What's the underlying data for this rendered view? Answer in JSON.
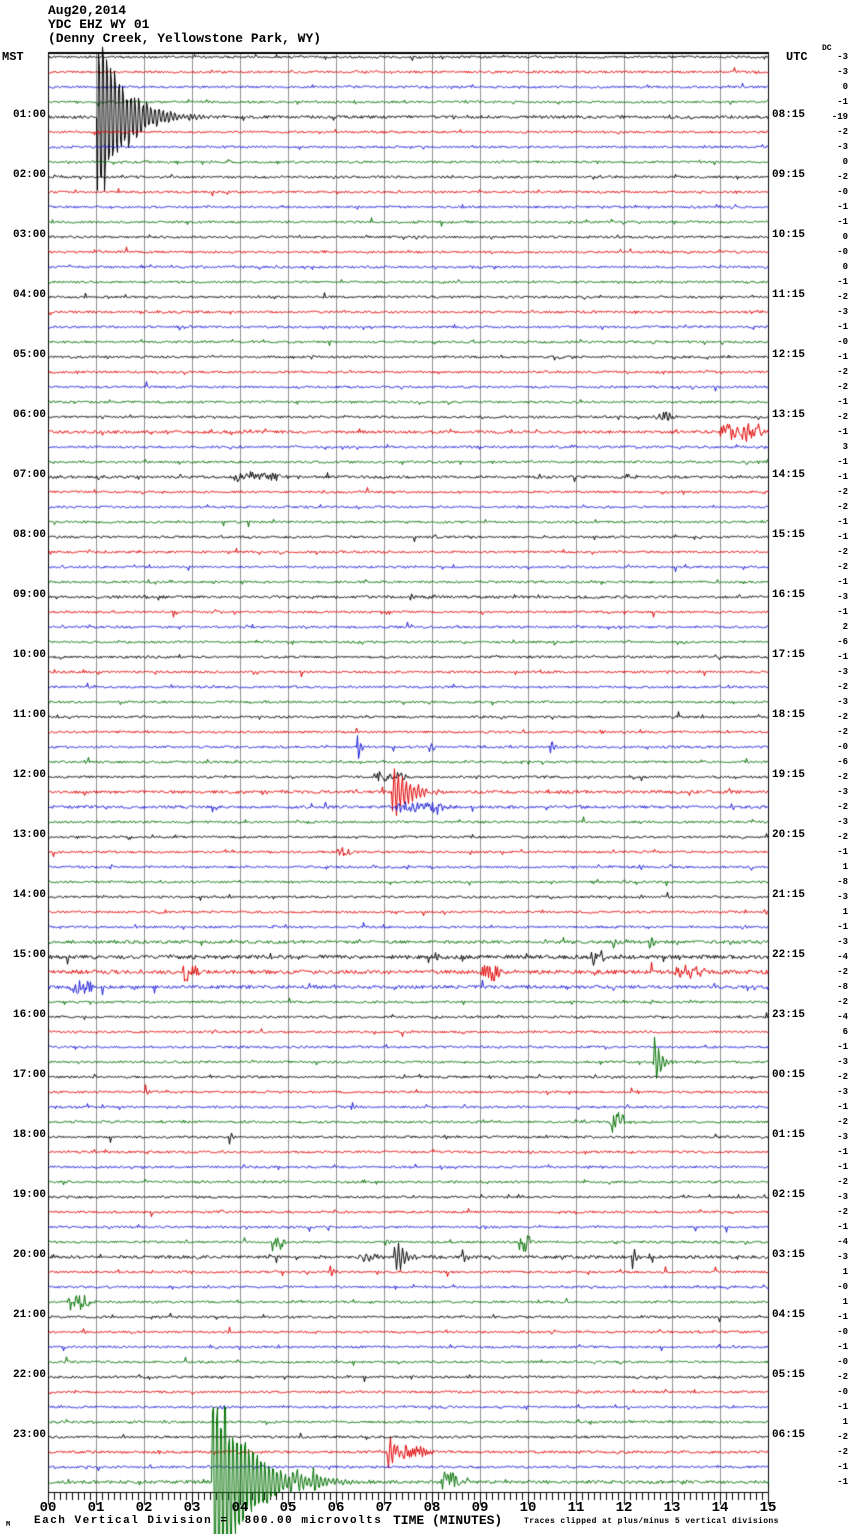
{
  "header": {
    "date": "Aug20,2014",
    "station": "YDC EHZ WY 01",
    "location": "(Denny Creek, Yellowstone Park, WY)",
    "left_tz": "MST",
    "right_tz": "UTC",
    "dc_label": "DC"
  },
  "footer": {
    "watermark": "M",
    "scale_note": "Each Vertical Division =  800.00 microvolts",
    "clip_note": "Traces clipped at plus/minus 5 vertical divisions"
  },
  "chart_data": {
    "type": "line",
    "kind": "helicorder-seismogram",
    "title": "YDC EHZ WY 01 (Denny Creek, Yellowstone Park, WY) Aug20,2014",
    "xlabel": "TIME (MINUTES)",
    "x_range": [
      0,
      15
    ],
    "x_ticks": [
      "00",
      "01",
      "02",
      "03",
      "04",
      "05",
      "06",
      "07",
      "08",
      "09",
      "10",
      "11",
      "12",
      "13",
      "14",
      "15"
    ],
    "minutes_per_line": 15,
    "rows_total": 96,
    "row_spacing_px": 15,
    "clip_divisions": 5,
    "microvolts_per_division": "800.00",
    "color_cycle": [
      "#000000",
      "#e00000",
      "#1c1cd8",
      "#007000"
    ],
    "grid_color": "#909090",
    "mst_labels": [
      "01:00",
      "02:00",
      "03:00",
      "04:00",
      "05:00",
      "06:00",
      "07:00",
      "08:00",
      "09:00",
      "10:00",
      "11:00",
      "12:00",
      "13:00",
      "14:00",
      "15:00",
      "16:00",
      "17:00",
      "18:00",
      "19:00",
      "20:00",
      "21:00",
      "22:00",
      "23:00"
    ],
    "utc_labels": [
      "08:15",
      "09:15",
      "10:15",
      "11:15",
      "12:15",
      "13:15",
      "14:15",
      "15:15",
      "16:15",
      "17:15",
      "18:15",
      "19:15",
      "20:15",
      "21:15",
      "22:15",
      "23:15",
      "00:15",
      "01:15",
      "02:15",
      "03:15",
      "04:15",
      "05:15",
      "06:15"
    ],
    "dc_values": [
      "-3",
      "-3",
      "0",
      "-1",
      "-19",
      "-2",
      "-3",
      "0",
      "-2",
      "-0",
      "-1",
      "-1",
      "0",
      "-0",
      "0",
      "-1",
      "-2",
      "-3",
      "-1",
      "-0",
      "-1",
      "-2",
      "-2",
      "-1",
      "-2",
      "-1",
      "3",
      "-1",
      "-1",
      "-2",
      "-2",
      "-1",
      "-1",
      "-2",
      "-2",
      "-1",
      "-3",
      "-1",
      "2",
      "-6",
      "-1",
      "-3",
      "-2",
      "-3",
      "-2",
      "-2",
      "-0",
      "-6",
      "-2",
      "-3",
      "-2",
      "-3",
      "-2",
      "-1",
      "1",
      "-8",
      "-3",
      "1",
      "-1",
      "-3",
      "-4",
      "-2",
      "-8",
      "-2",
      "-4",
      "6",
      "-1",
      "-3",
      "-2",
      "-3",
      "-1",
      "-2",
      "-3",
      "-1",
      "-1",
      "-2",
      "-3",
      "-2",
      "-1",
      "-4",
      "-3",
      "1",
      "-0",
      "1",
      "-1",
      "-0",
      "-1",
      "-0",
      "-2",
      "-0",
      "-1",
      "1",
      "-2",
      "-2",
      "-1",
      "-1"
    ],
    "noise_overrides": {
      "4": 1.5,
      "25": 1.4,
      "28": 1.3,
      "36": 1.3,
      "49": 1.5,
      "50": 1.4,
      "59": 1.5,
      "60": 2.0,
      "61": 2.0,
      "62": 1.6,
      "80": 1.5,
      "93": 1.3,
      "95": 1.6
    },
    "events": [
      {
        "r": 3,
        "m": 1.02,
        "a": 9,
        "d": 0.12,
        "k": "s"
      },
      {
        "r": 4,
        "m": 1.0,
        "a": 150,
        "d": 1.3,
        "k": "q"
      },
      {
        "r": 24,
        "m": 12.65,
        "a": 7,
        "d": 0.3,
        "k": "b"
      },
      {
        "r": 25,
        "m": 14.0,
        "a": 11,
        "d": 0.55,
        "k": "b"
      },
      {
        "r": 25,
        "m": 14.5,
        "a": 9,
        "d": 0.3,
        "k": "b"
      },
      {
        "r": 28,
        "m": 3.85,
        "a": 6,
        "d": 0.8,
        "k": "b"
      },
      {
        "r": 45,
        "m": 6.4,
        "a": 9,
        "d": 0.12,
        "k": "s"
      },
      {
        "r": 46,
        "m": 6.42,
        "a": 26,
        "d": 0.18,
        "k": "s"
      },
      {
        "r": 46,
        "m": 8.0,
        "a": 6,
        "d": 0.12,
        "k": "s"
      },
      {
        "r": 46,
        "m": 10.45,
        "a": 23,
        "d": 0.15,
        "k": "s"
      },
      {
        "r": 48,
        "m": 6.85,
        "a": 6,
        "d": 0.5,
        "k": "b"
      },
      {
        "r": 49,
        "m": 7.15,
        "a": 40,
        "d": 0.85,
        "k": "q"
      },
      {
        "r": 50,
        "m": 7.2,
        "a": 7,
        "d": 0.9,
        "k": "b"
      },
      {
        "r": 53,
        "m": 6.0,
        "a": 7,
        "d": 0.3,
        "k": "b"
      },
      {
        "r": 54,
        "m": 12.3,
        "a": 8,
        "d": 0.15,
        "k": "s"
      },
      {
        "r": 59,
        "m": 11.75,
        "a": 11,
        "d": 0.2,
        "k": "s"
      },
      {
        "r": 59,
        "m": 12.5,
        "a": 13,
        "d": 0.25,
        "k": "s"
      },
      {
        "r": 60,
        "m": 8.05,
        "a": 8,
        "d": 0.2,
        "k": "s"
      },
      {
        "r": 60,
        "m": 11.3,
        "a": 9,
        "d": 0.3,
        "k": "b"
      },
      {
        "r": 61,
        "m": 2.8,
        "a": 10,
        "d": 0.3,
        "k": "b"
      },
      {
        "r": 61,
        "m": 9.0,
        "a": 10,
        "d": 0.35,
        "k": "b"
      },
      {
        "r": 61,
        "m": 13.05,
        "a": 9,
        "d": 0.4,
        "k": "b"
      },
      {
        "r": 62,
        "m": 0.45,
        "a": 9,
        "d": 0.4,
        "k": "b"
      },
      {
        "r": 67,
        "m": 12.6,
        "a": 46,
        "d": 0.3,
        "k": "s"
      },
      {
        "r": 69,
        "m": 2.0,
        "a": 13,
        "d": 0.18,
        "k": "s"
      },
      {
        "r": 70,
        "m": 6.3,
        "a": 11,
        "d": 0.15,
        "k": "s"
      },
      {
        "r": 70,
        "m": 8.65,
        "a": 7,
        "d": 0.15,
        "k": "s"
      },
      {
        "r": 71,
        "m": 11.15,
        "a": 5,
        "d": 0.1,
        "k": "s"
      },
      {
        "r": 71,
        "m": 11.7,
        "a": 15,
        "d": 0.3,
        "k": "b"
      },
      {
        "r": 72,
        "m": 3.75,
        "a": 13,
        "d": 0.15,
        "k": "s"
      },
      {
        "r": 79,
        "m": 4.65,
        "a": 12,
        "d": 0.2,
        "k": "b"
      },
      {
        "r": 79,
        "m": 7.0,
        "a": 5,
        "d": 0.15,
        "k": "s"
      },
      {
        "r": 79,
        "m": 9.8,
        "a": 12,
        "d": 0.2,
        "k": "b"
      },
      {
        "r": 80,
        "m": 6.45,
        "a": 5,
        "d": 0.4,
        "k": "b"
      },
      {
        "r": 80,
        "m": 7.2,
        "a": 26,
        "d": 0.5,
        "k": "q"
      },
      {
        "r": 80,
        "m": 8.6,
        "a": 15,
        "d": 0.2,
        "k": "s"
      },
      {
        "r": 80,
        "m": 12.15,
        "a": 17,
        "d": 0.2,
        "k": "s"
      },
      {
        "r": 81,
        "m": 5.85,
        "a": 19,
        "d": 0.15,
        "k": "s"
      },
      {
        "r": 83,
        "m": 0.4,
        "a": 11,
        "d": 0.35,
        "k": "b"
      },
      {
        "r": 85,
        "m": 0.7,
        "a": 9,
        "d": 0.15,
        "k": "s"
      },
      {
        "r": 90,
        "m": 3.55,
        "a": 5,
        "d": 0.15,
        "k": "s"
      },
      {
        "r": 93,
        "m": 7.05,
        "a": 42,
        "d": 0.25,
        "k": "s"
      },
      {
        "r": 93,
        "m": 7.25,
        "a": 8,
        "d": 0.5,
        "k": "b"
      },
      {
        "r": 95,
        "m": 3.4,
        "a": 170,
        "d": 1.7,
        "k": "q"
      },
      {
        "r": 95,
        "m": 4.9,
        "a": 7,
        "d": 0.3,
        "k": "b"
      },
      {
        "r": 95,
        "m": 5.5,
        "a": 18,
        "d": 0.2,
        "k": "s"
      },
      {
        "r": 95,
        "m": 8.15,
        "a": 13,
        "d": 0.3,
        "k": "b"
      }
    ]
  }
}
